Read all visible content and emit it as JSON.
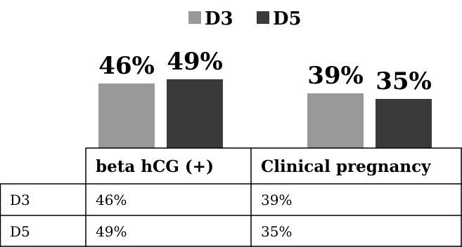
{
  "chart_data": {
    "type": "bar",
    "categories": [
      "beta hCG (+)",
      "Clinical pregnancy"
    ],
    "series": [
      {
        "name": "D3",
        "values": [
          46,
          39
        ],
        "color": "#999999"
      },
      {
        "name": "D5",
        "values": [
          49,
          35
        ],
        "color": "#3a3a3a"
      }
    ],
    "value_suffix": "%",
    "legend_position": "top-center",
    "grid": false
  },
  "table": {
    "rows": [
      {
        "label": "D3",
        "cells": [
          "46%",
          "39%"
        ]
      },
      {
        "label": "D5",
        "cells": [
          "49%",
          "35%"
        ]
      }
    ]
  }
}
